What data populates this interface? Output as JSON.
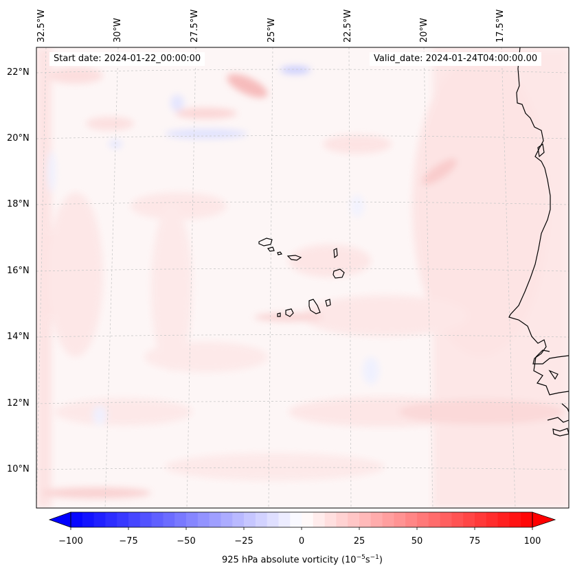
{
  "map": {
    "start_date": "Start date: 2024-01-22_00:00:00",
    "valid_date": "Valid_date: 2024-01-24T04:00:00.00",
    "lon_labels": [
      "32.5°W",
      "30°W",
      "27.5°W",
      "25°W",
      "22.5°W",
      "20°W",
      "17.5°W"
    ],
    "lat_labels": [
      "22°N",
      "20°N",
      "18°N",
      "16°N",
      "14°N",
      "12°N",
      "10°N"
    ],
    "field": "925 hPa absolute vorticity",
    "land_features": [
      "Cape Verde islands",
      "West African coastline"
    ]
  },
  "colorbar": {
    "label": "925 hPa absolute vorticity (10",
    "label_exp1": "−5",
    "label_mid": "s",
    "label_exp2": "−1",
    "label_end": ")",
    "ticks": [
      "−100",
      "−75",
      "−50",
      "−25",
      "0",
      "25",
      "50",
      "75",
      "100"
    ],
    "min": -100,
    "max": 100,
    "colormap": "bwr",
    "low_color": "#0000ff",
    "mid_color": "#ffffff",
    "high_color": "#ff0000",
    "extend": "both"
  }
}
